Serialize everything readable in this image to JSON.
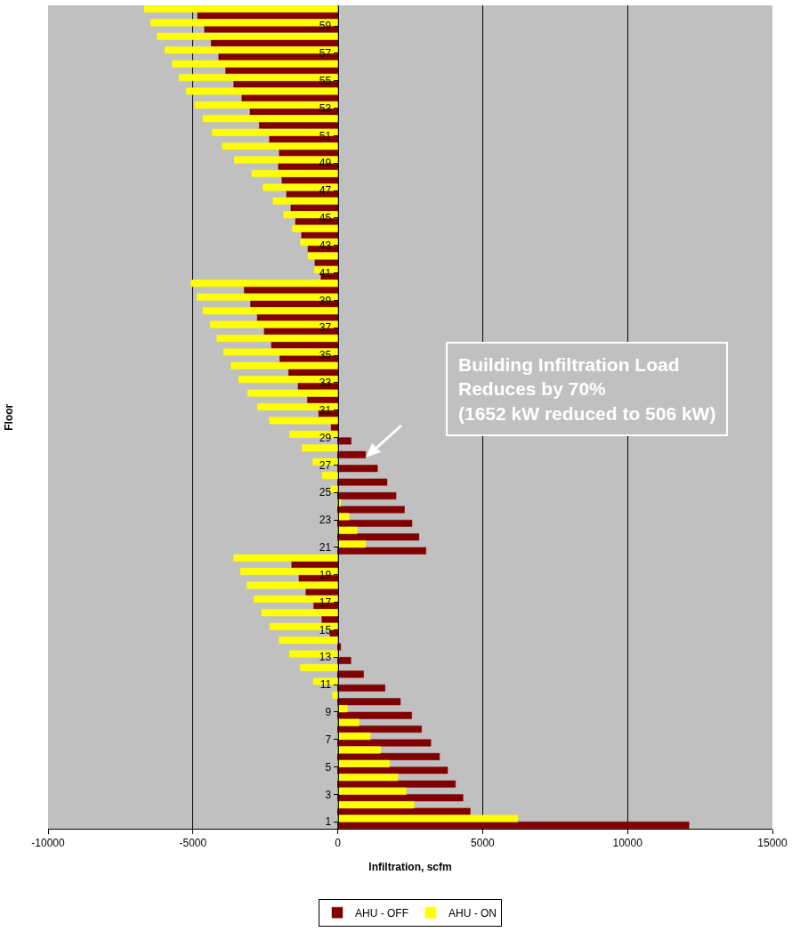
{
  "chart_data": {
    "type": "bar",
    "orientation": "horizontal",
    "xlabel": "Infiltration, scfm",
    "ylabel": "Floor",
    "categories": [
      null,
      "59",
      null,
      "57",
      null,
      "55",
      null,
      "53",
      null,
      "51",
      null,
      "49",
      null,
      "47",
      null,
      "45",
      null,
      "43",
      null,
      "41",
      null,
      "39",
      null,
      "37",
      null,
      "35",
      null,
      "33",
      null,
      "31",
      null,
      "29",
      null,
      "27",
      null,
      "25",
      null,
      "23",
      null,
      "21",
      null,
      "19",
      null,
      "17",
      null,
      "15",
      null,
      "13",
      null,
      "11",
      null,
      "9",
      null,
      "7",
      null,
      "5",
      null,
      "3",
      null,
      "1"
    ],
    "series": [
      {
        "name": "AHU - OFF",
        "color": "#800000",
        "values": [
          -4840,
          -4600,
          -4370,
          -4110,
          -3870,
          -3590,
          -3310,
          -3030,
          -2710,
          -2360,
          -2020,
          -2050,
          -1930,
          -1770,
          -1620,
          -1460,
          -1250,
          -1030,
          -790,
          -580,
          -3230,
          -3010,
          -2780,
          -2540,
          -2290,
          -2000,
          -1700,
          -1370,
          -1050,
          -660,
          -230,
          460,
          960,
          1370,
          1700,
          2010,
          2300,
          2560,
          2800,
          3040,
          -1590,
          -1340,
          -1100,
          -830,
          -550,
          -270,
          100,
          450,
          890,
          1630,
          2160,
          2550,
          2890,
          3210,
          3510,
          3790,
          4060,
          4320,
          4570,
          12120
        ]
      },
      {
        "name": "AHU - ON",
        "color": "#ffff00",
        "values": [
          -6680,
          -6460,
          -6230,
          -5970,
          -5720,
          -5480,
          -5230,
          -4940,
          -4650,
          -4340,
          -3990,
          -3570,
          -2970,
          -2580,
          -2230,
          -1870,
          -1570,
          -1290,
          -1030,
          -800,
          -5070,
          -4860,
          -4650,
          -4410,
          -4170,
          -3940,
          -3690,
          -3420,
          -3110,
          -2770,
          -2360,
          -1660,
          -1230,
          -860,
          -540,
          -250,
          100,
          390,
          670,
          960,
          -3590,
          -3360,
          -3140,
          -2890,
          -2630,
          -2350,
          -2030,
          -1670,
          -1300,
          -840,
          -180,
          330,
          730,
          1120,
          1470,
          1780,
          2070,
          2360,
          2630,
          6210
        ]
      }
    ],
    "xlim": [
      -10000,
      15000
    ],
    "xticks": [
      -10000,
      -5000,
      0,
      5000,
      10000,
      15000
    ],
    "grid": "x",
    "legend": "bottom",
    "annotations": [
      "Building Infiltration Load\nReduces by 70%\n(1652 kW reduced to 506 kW)"
    ]
  }
}
